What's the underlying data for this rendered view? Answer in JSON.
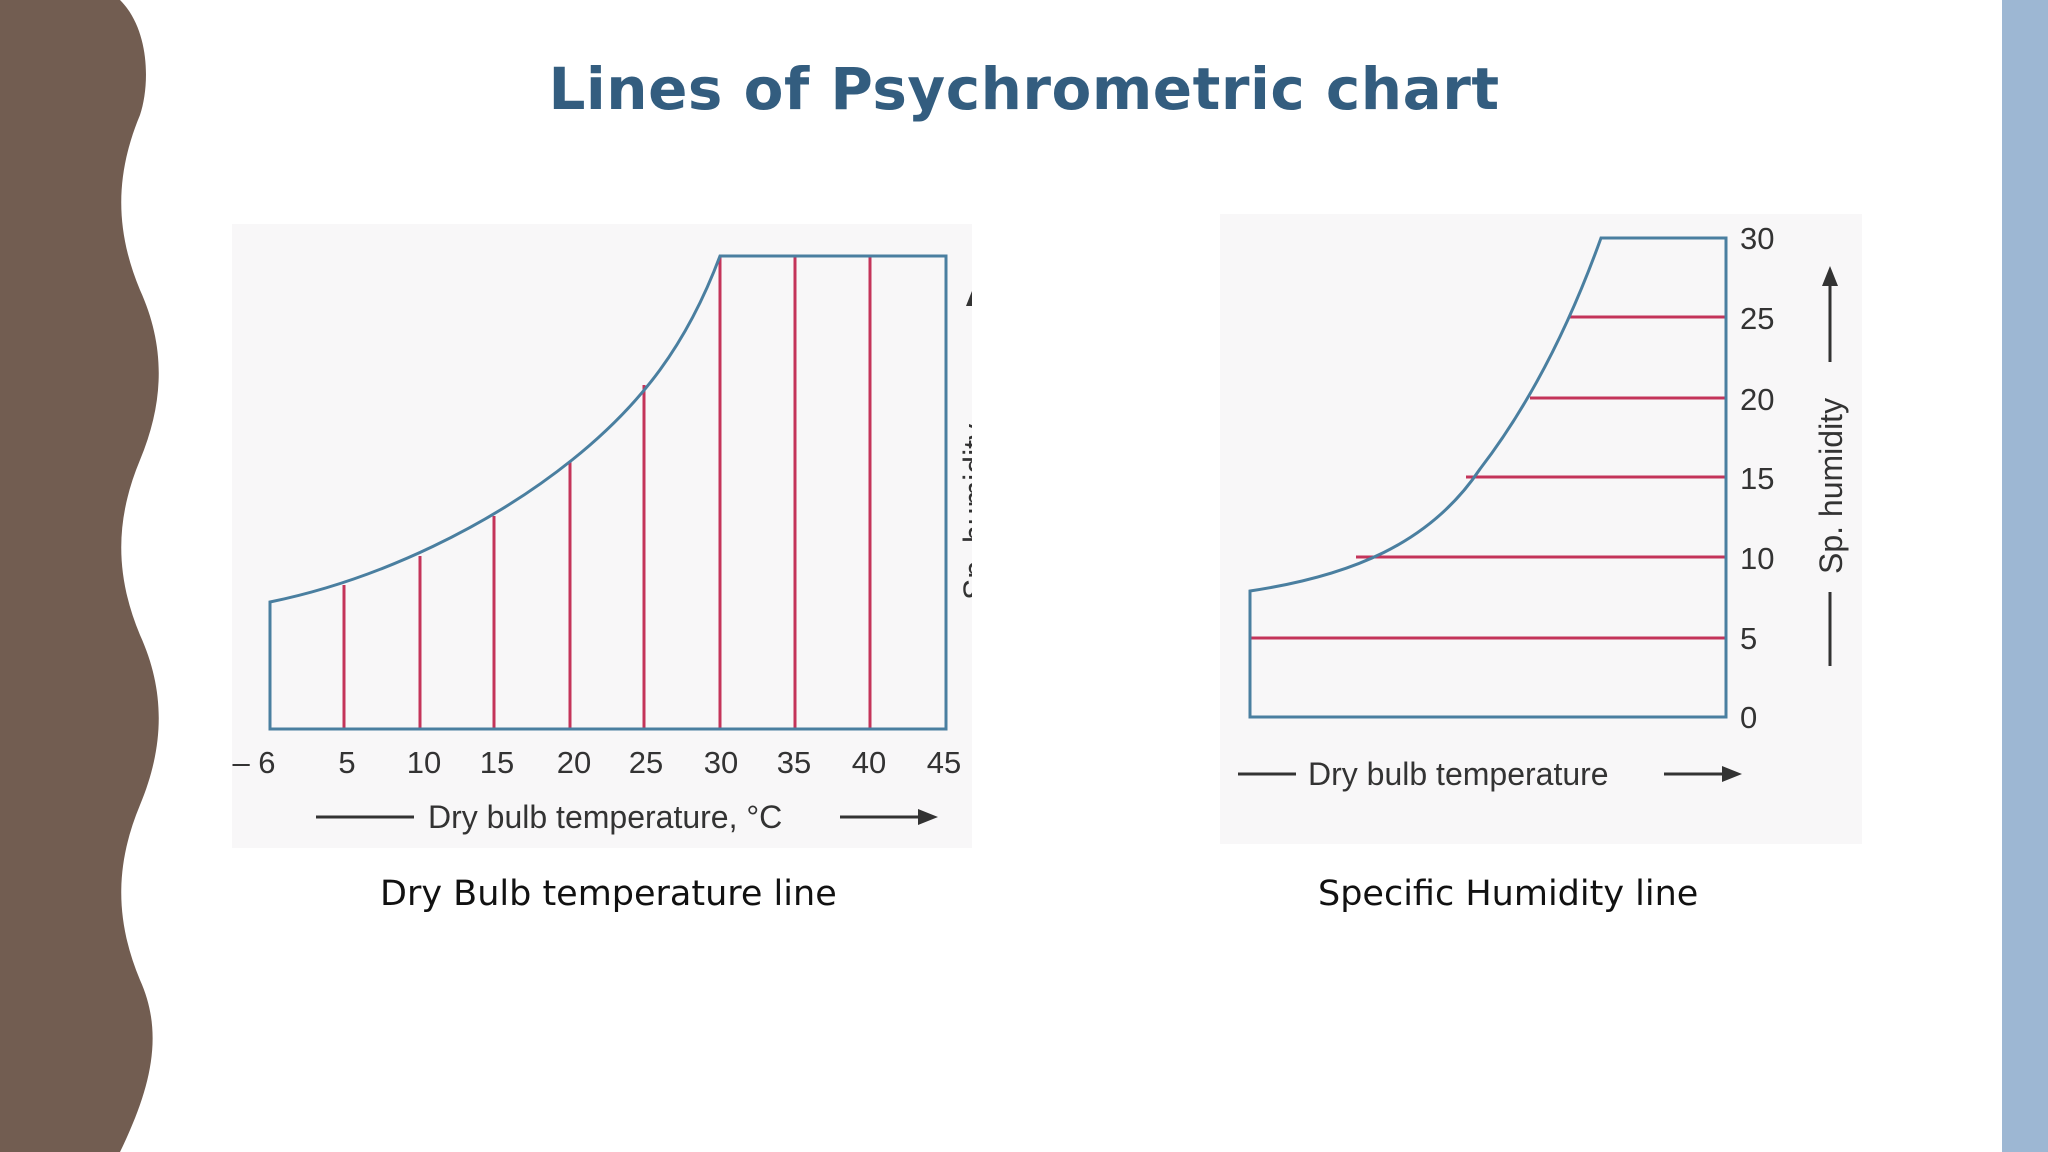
{
  "slide": {
    "title": "Lines of Psychrometric chart",
    "colors": {
      "left_band": "#725d51",
      "right_band": "#9db7d3",
      "title": "#335d7f",
      "curve": "#4a7fa0",
      "lines": "#c4345a"
    }
  },
  "diagrams": {
    "dry_bulb": {
      "caption": "Dry Bulb temperature line",
      "x_tick_labels": [
        "– 6",
        "5",
        "10",
        "15",
        "20",
        "25",
        "30",
        "35",
        "40",
        "45"
      ],
      "x_axis_label": "Dry bulb temperature, °C",
      "y_axis_label": "Sp. humidity",
      "line_orientation": "vertical"
    },
    "specific_humidity": {
      "caption": "Specific Humidity line",
      "y_tick_labels": [
        "0",
        "5",
        "10",
        "15",
        "20",
        "25",
        "30"
      ],
      "x_axis_label": "Dry bulb temperature",
      "y_axis_label": "Sp. humidity",
      "line_orientation": "horizontal"
    }
  }
}
